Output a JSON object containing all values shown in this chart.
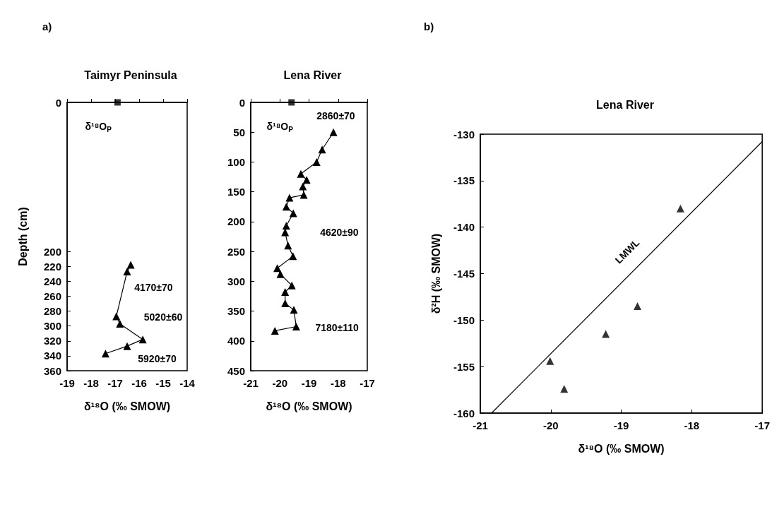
{
  "chart_data": [
    {
      "type": "line",
      "title": "Taimyr Peninsula",
      "xlabel": "δ¹⁸O (‰ SMOW)",
      "ylabel": "Depth (cm)",
      "xlim": [
        -19,
        -14
      ],
      "xticks": [
        -19,
        -18,
        -17,
        -16,
        -15,
        -14
      ],
      "ylim": [
        360,
        0
      ],
      "yticks": [
        0,
        200,
        220,
        240,
        260,
        280,
        300,
        320,
        340,
        360
      ],
      "grid": false,
      "marker": "triangle",
      "line_style": "solid",
      "series": [
        {
          "type": "scatter",
          "marker": "square",
          "color": "#000000",
          "x": [
            -16.9
          ],
          "values": [
            0
          ]
        },
        {
          "color": "#000000",
          "x": [
            -16.35,
            -16.5,
            -16.95,
            -16.8,
            -15.85,
            -16.5,
            -17.4
          ],
          "values": [
            218,
            227,
            287,
            297,
            318,
            327,
            337
          ]
        }
      ],
      "annotations": [
        "a)",
        "δ¹⁸O$_{P}$",
        "4170±70",
        "5020±60",
        "5920±70"
      ]
    },
    {
      "type": "line",
      "title": "Lena River",
      "xlabel": "δ¹⁸O (‰ SMOW)",
      "xlim": [
        -21,
        -17
      ],
      "xticks": [
        -21,
        -20,
        -19,
        -18,
        -17
      ],
      "ylim": [
        450,
        0
      ],
      "yticks": [
        0,
        50,
        100,
        150,
        200,
        250,
        300,
        350,
        400,
        450
      ],
      "grid": false,
      "marker": "triangle",
      "line_style": "solid",
      "series": [
        {
          "type": "scatter",
          "marker": "square",
          "color": "#000000",
          "x": [
            -19.6
          ],
          "values": [
            0
          ]
        },
        {
          "color": "#000000",
          "x": [
            -18.16,
            -18.55,
            -18.74,
            -19.28,
            -19.08,
            -19.21,
            -19.18,
            -19.67,
            -19.78,
            -19.54,
            -19.78,
            -19.82,
            -19.72,
            -19.55,
            -20.09,
            -19.98,
            -19.59,
            -19.82,
            -19.82,
            -19.52,
            -19.44,
            -20.17
          ],
          "values": [
            50,
            79,
            100,
            120,
            130,
            141,
            155,
            160,
            175,
            186,
            207,
            218,
            240,
            258,
            278,
            288,
            307,
            318,
            337,
            348,
            376,
            383
          ]
        }
      ],
      "annotations": [
        "δ¹⁸O$_{P}$",
        "2860±70",
        "4620±90",
        "7180±110"
      ]
    },
    {
      "type": "scatter",
      "title": "Lena River",
      "xlabel": "δ¹⁸O (‰ SMOW)",
      "ylabel": "δ²H (‰ SMOW)",
      "xlim": [
        -21,
        -17
      ],
      "xticks": [
        -21,
        -20,
        -19,
        -18,
        -17
      ],
      "ylim": [
        -160,
        -130
      ],
      "yticks": [
        -160,
        -155,
        -150,
        -145,
        -140,
        -135,
        -130
      ],
      "grid": false,
      "marker": "triangle",
      "series": [
        {
          "color": "#000000",
          "x": [
            -18.16,
            -18.77,
            -19.22,
            -20.01,
            -19.81
          ],
          "values": [
            -138.0,
            -148.5,
            -151.5,
            -154.4,
            -157.4
          ]
        },
        {
          "type": "line",
          "marker": "none",
          "line_style": "solid",
          "color": "#000000",
          "x": [
            -20.84,
            -17
          ],
          "values": [
            -160,
            -130.8
          ]
        }
      ],
      "annotations": [
        "b)",
        "LMWL"
      ]
    }
  ]
}
